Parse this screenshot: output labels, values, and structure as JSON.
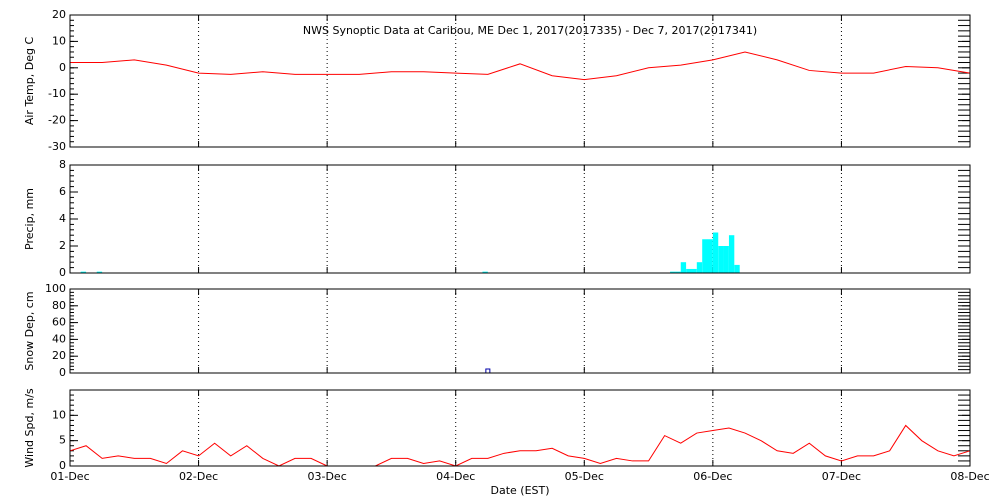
{
  "chart_data": [
    {
      "type": "line",
      "title": "NWS Synoptic Data at Caribou, ME   Dec  1, 2017(2017335) - Dec  7, 2017(2017341)",
      "ylabel": "Air Temp, Deg C",
      "color": "#ff0000",
      "x": [
        0,
        0.25,
        0.5,
        0.75,
        1,
        1.25,
        1.5,
        1.75,
        2,
        2.25,
        2.5,
        2.75,
        3,
        3.25,
        3.5,
        3.75,
        4,
        4.25,
        4.5,
        4.75,
        5,
        5.25,
        5.5,
        5.75,
        6,
        6.25,
        6.5,
        6.75,
        7
      ],
      "values": [
        2,
        2,
        3,
        1,
        -2,
        -2.5,
        -1.5,
        -2.5,
        -2.5,
        -2.5,
        -1.5,
        -1.5,
        -2,
        -2.5,
        1.5,
        -3,
        -4.5,
        -3,
        0,
        1,
        3,
        6,
        3,
        -1,
        -2,
        -2,
        0.5,
        0,
        -2
      ],
      "xlim": [
        0,
        7
      ],
      "xticks": [
        0,
        1,
        2,
        3,
        4,
        5,
        6,
        7
      ],
      "ylim": [
        -30,
        20
      ],
      "yticks": [
        -30,
        -20,
        -10,
        0,
        10,
        20
      ],
      "grid": "x"
    },
    {
      "type": "bar",
      "ylabel": "Precip, mm",
      "color": "#00ffff",
      "x": [
        0.104,
        0.229,
        3.229,
        4.688,
        4.729,
        4.771,
        4.813,
        4.854,
        4.896,
        4.938,
        4.979,
        5.021,
        5.063,
        5.104,
        5.146,
        5.188
      ],
      "values": [
        0.1,
        0.1,
        0.1,
        0.1,
        0.1,
        0.8,
        0.3,
        0.3,
        0.8,
        2.5,
        2.5,
        3,
        2,
        2,
        2.8,
        0.6
      ],
      "xlim": [
        0,
        7
      ],
      "xticks": [
        0,
        1,
        2,
        3,
        4,
        5,
        6,
        7
      ],
      "ylim": [
        0,
        8
      ],
      "yticks": [
        0,
        2,
        4,
        6,
        8
      ],
      "grid": "x"
    },
    {
      "type": "scatter",
      "ylabel": "Snow Dep, cm",
      "color": "#0000aa",
      "x": [
        3.25
      ],
      "values": [
        0
      ],
      "xlim": [
        0,
        7
      ],
      "xticks": [
        0,
        1,
        2,
        3,
        4,
        5,
        6,
        7
      ],
      "ylim": [
        0,
        100
      ],
      "yticks": [
        0,
        20,
        40,
        60,
        80,
        100
      ],
      "grid": "x"
    },
    {
      "type": "line",
      "ylabel": "Wind Spd, m/s",
      "xlabel": "Date (EST)",
      "color": "#ff0000",
      "x": [
        0,
        0.125,
        0.25,
        0.375,
        0.5,
        0.625,
        0.75,
        0.875,
        1,
        1.125,
        1.25,
        1.375,
        1.5,
        1.625,
        1.75,
        1.875,
        2,
        2.125,
        2.25,
        2.375,
        2.5,
        2.625,
        2.75,
        2.875,
        3,
        3.125,
        3.25,
        3.375,
        3.5,
        3.625,
        3.75,
        3.875,
        4,
        4.125,
        4.25,
        4.375,
        4.5,
        4.625,
        4.75,
        4.875,
        5,
        5.125,
        5.25,
        5.375,
        5.5,
        5.625,
        5.75,
        5.875,
        6,
        6.125,
        6.25,
        6.375,
        6.5,
        6.625,
        6.75,
        6.875,
        7
      ],
      "values": [
        3,
        4,
        1.5,
        2,
        1.5,
        1.5,
        0.5,
        3,
        2,
        4.5,
        2,
        4,
        1.5,
        0,
        1.5,
        1.5,
        0,
        0,
        0,
        0,
        1.5,
        1.5,
        0.5,
        1,
        0,
        1.5,
        1.5,
        2.5,
        3,
        3,
        3.5,
        2,
        1.5,
        0.5,
        1.5,
        1,
        1,
        6,
        4.5,
        6.5,
        7,
        7.5,
        6.5,
        5,
        3,
        2.5,
        4.5,
        2,
        1,
        2,
        2,
        3,
        8,
        5,
        3,
        2,
        3
      ],
      "xlim": [
        0,
        7
      ],
      "xticks": [
        {
          "value": 0,
          "label": "01-Dec"
        },
        {
          "value": 1,
          "label": "02-Dec"
        },
        {
          "value": 2,
          "label": "03-Dec"
        },
        {
          "value": 3,
          "label": "04-Dec"
        },
        {
          "value": 4,
          "label": "05-Dec"
        },
        {
          "value": 5,
          "label": "06-Dec"
        },
        {
          "value": 6,
          "label": "07-Dec"
        },
        {
          "value": 7,
          "label": "08-Dec"
        }
      ],
      "ylim": [
        0,
        15
      ],
      "yticks": [
        0,
        5,
        10
      ],
      "grid": "x"
    }
  ]
}
